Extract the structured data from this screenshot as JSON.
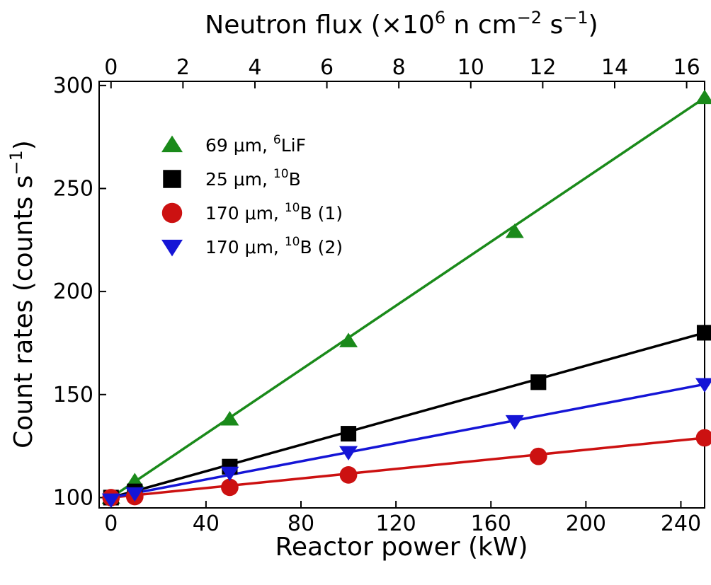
{
  "chart_data": {
    "type": "scatter",
    "title": "",
    "xlabel": "Reactor power (kW)",
    "ylabel_parts": {
      "main": "Count rates (counts s",
      "sup": "−1",
      "end": ")"
    },
    "x2label_parts": {
      "pre": "Neutron flux (×10",
      "sup1": "6",
      "mid": " n cm",
      "sup2": "−2",
      "mid2": " s",
      "sup3": "−1",
      "end": ")"
    },
    "xlim": [
      -5,
      250
    ],
    "ylim": [
      95,
      302
    ],
    "x2lim": [
      -0.33,
      16.5
    ],
    "x_ticks": [
      0,
      40,
      80,
      120,
      160,
      200,
      240
    ],
    "x_tick_labels": [
      "0",
      "40",
      "80",
      "120",
      "160",
      "200",
      "240"
    ],
    "y_ticks": [
      100,
      150,
      200,
      250,
      300
    ],
    "y_tick_labels": [
      "100",
      "150",
      "200",
      "250",
      "300"
    ],
    "x2_ticks": [
      0,
      2,
      4,
      6,
      8,
      10,
      12,
      14,
      16
    ],
    "x2_tick_labels": [
      "0",
      "2",
      "4",
      "6",
      "8",
      "10",
      "12",
      "14",
      "16"
    ],
    "grid": false,
    "legend_position": "upper-left",
    "series": [
      {
        "label_parts": {
          "pre": "69 μm, ",
          "sup": "6",
          "post": "LiF"
        },
        "marker": "triangle-up",
        "color": "#1a8a1a",
        "x": [
          0,
          10,
          50,
          100,
          170,
          250
        ],
        "y": [
          100,
          108,
          138,
          176,
          229,
          294
        ],
        "fit": [
          [
            0,
            100
          ],
          [
            250,
            294
          ]
        ]
      },
      {
        "label_parts": {
          "pre": "25 μm, ",
          "sup": "10",
          "post": "B"
        },
        "marker": "square",
        "color": "#000000",
        "x": [
          0,
          10,
          50,
          100,
          180,
          250
        ],
        "y": [
          100,
          103,
          115,
          131,
          156,
          180
        ],
        "fit": [
          [
            0,
            100
          ],
          [
            250,
            180
          ]
        ]
      },
      {
        "label_parts": {
          "pre": "170 μm, ",
          "sup": "10",
          "post": "B (1)"
        },
        "marker": "circle",
        "color": "#cc1111",
        "x": [
          0,
          10,
          50,
          100,
          180,
          250
        ],
        "y": [
          100,
          100.5,
          105,
          111,
          120,
          129
        ],
        "fit": [
          [
            0,
            100
          ],
          [
            250,
            129
          ]
        ]
      },
      {
        "label_parts": {
          "pre": "170 μm, ",
          "sup": "10",
          "post": "B (2)"
        },
        "marker": "triangle-down",
        "color": "#1515d6",
        "x": [
          0,
          10,
          50,
          100,
          170,
          250
        ],
        "y": [
          99,
          102,
          112,
          122,
          137,
          155
        ],
        "fit": [
          [
            0,
            100
          ],
          [
            250,
            155
          ]
        ]
      }
    ]
  }
}
